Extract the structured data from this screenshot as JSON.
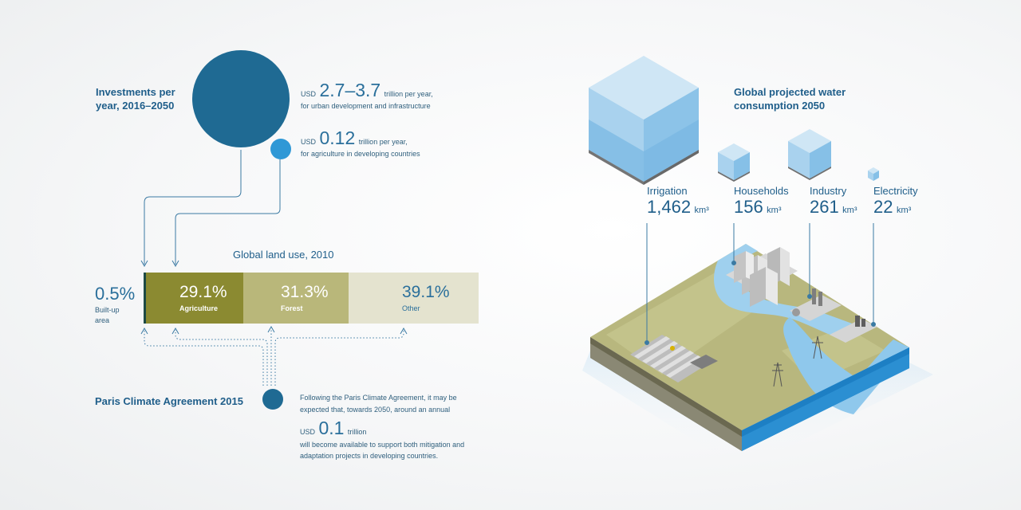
{
  "investments": {
    "title": "Investments per year, 2016–2050",
    "urban": {
      "currency": "USD",
      "value": "2.7–3.7",
      "unit_text": "trillion per year,",
      "desc": "for urban development and infrastructure"
    },
    "agri": {
      "currency": "USD",
      "value": "0.12",
      "unit_text": "trillion per year,",
      "desc": "for agriculture in developing countries"
    }
  },
  "land_use": {
    "title": "Global land use, 2010",
    "builtup_value": "0.5%",
    "builtup_label": "Built-up area",
    "segments": [
      {
        "value": "29.1%",
        "label": "Agriculture",
        "share": 29.1,
        "color": "#8b8a31"
      },
      {
        "value": "31.3%",
        "label": "Forest",
        "share": 31.3,
        "color": "#b9b77a"
      },
      {
        "value": "39.1%",
        "label": "Other",
        "share": 39.1,
        "color": "#e4e3cf"
      }
    ]
  },
  "paris": {
    "title": "Paris Climate Agreement 2015",
    "text1": "Following the Paris Climate Agreement, it may be expected that, towards 2050, around an annual",
    "currency": "USD",
    "value": "0.1",
    "unit_text": "trillion",
    "text2": "will become available to support both mitigation and adaptation projects in developing countries."
  },
  "water": {
    "title": "Global projected water consumption 2050",
    "unit": "km³",
    "categories": [
      {
        "label": "Irrigation",
        "value": "1,462"
      },
      {
        "label": "Households",
        "value": "156"
      },
      {
        "label": "Industry",
        "value": "261"
      },
      {
        "label": "Electricity",
        "value": "22"
      }
    ]
  },
  "colors": {
    "dark_blue": "#1f6a93",
    "light_blue": "#2f98d6",
    "agriculture": "#8b8a31",
    "forest": "#b9b77a",
    "other": "#e4e3cf"
  }
}
